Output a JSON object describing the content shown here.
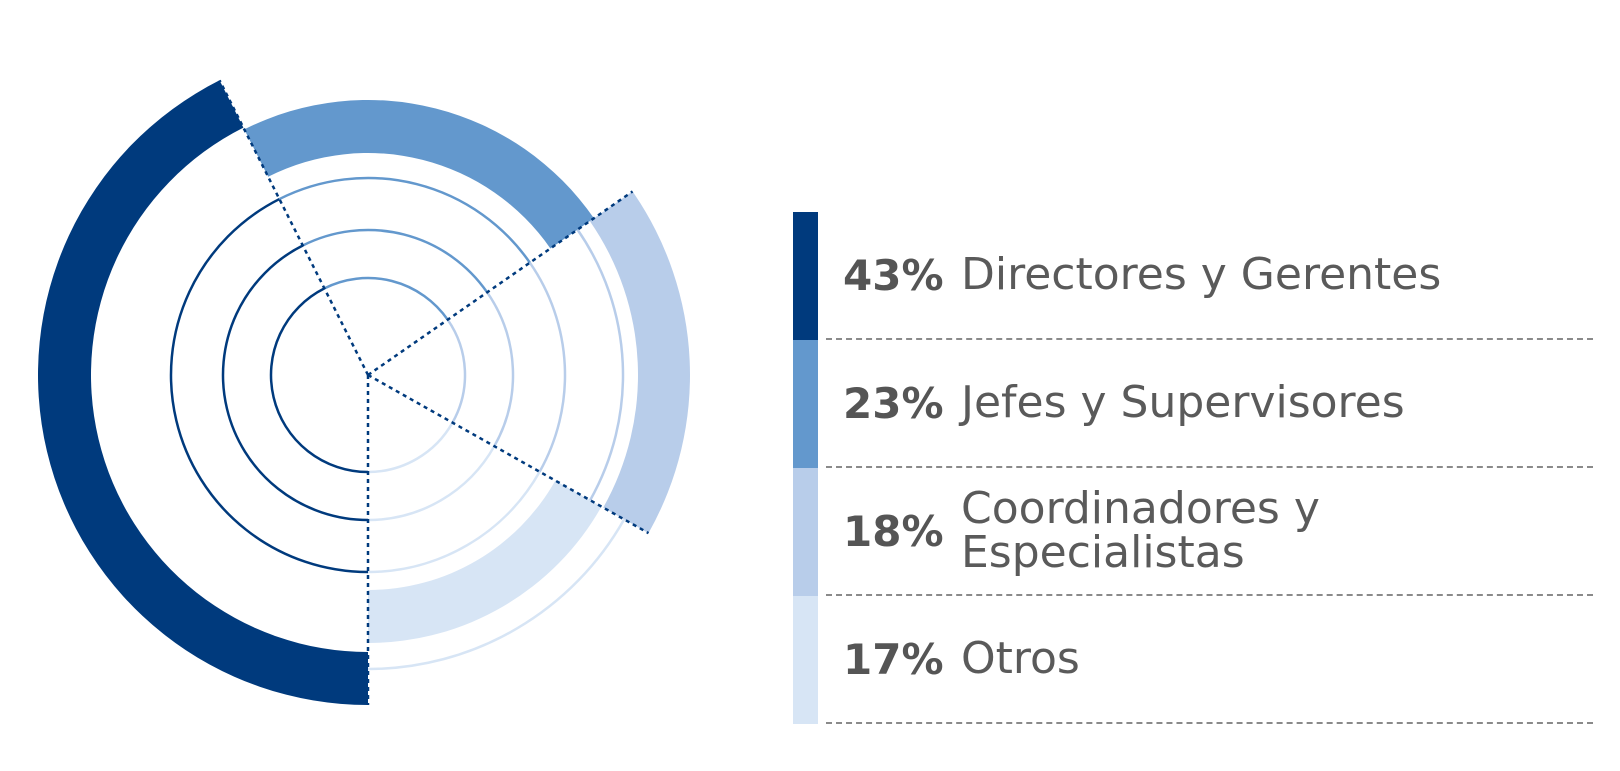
{
  "chart_data": {
    "type": "pie",
    "title": "",
    "categories": [
      "Directores y Gerentes",
      "Jefes y Supervisores",
      "Coordinadores y Especialistas",
      "Otros"
    ],
    "values": [
      43,
      23,
      18,
      17
    ],
    "unit": "%",
    "legend_position": "right",
    "legend": [
      {
        "pct": "43%",
        "label": "Directores y Gerentes",
        "color": "#003a7d"
      },
      {
        "pct": "23%",
        "label": "Jefes y Supervisores",
        "color": "#6398cd"
      },
      {
        "pct": "18%",
        "label": "Coordinadores y Especialistas",
        "color": "#b8cdea"
      },
      {
        "pct": "17%",
        "label": "Otros",
        "color": "#d7e5f5"
      }
    ]
  }
}
